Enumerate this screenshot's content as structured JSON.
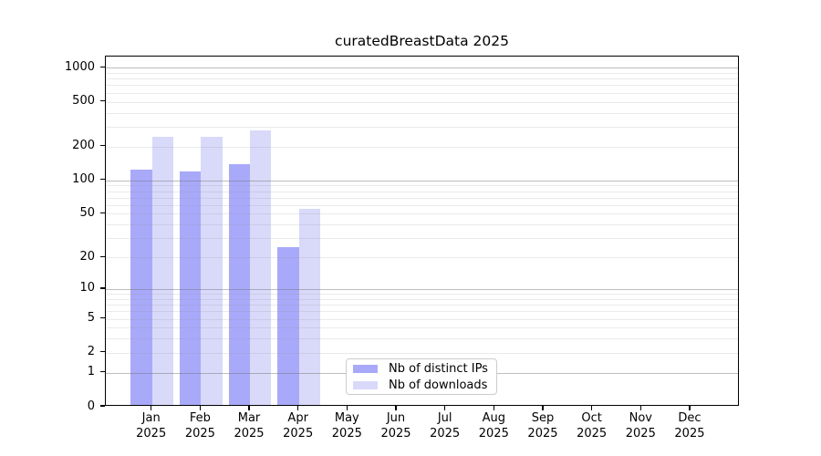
{
  "chart_data": {
    "type": "bar",
    "title": "curatedBreastData 2025",
    "categories": [
      "Jan",
      "Feb",
      "Mar",
      "Apr",
      "May",
      "Jun",
      "Jul",
      "Aug",
      "Sep",
      "Oct",
      "Nov",
      "Dec"
    ],
    "category_year": "2025",
    "series": [
      {
        "name": "Nb of distinct IPs",
        "color": "#a9a9fa",
        "values": [
          120,
          116,
          135,
          24,
          0,
          0,
          0,
          0,
          0,
          0,
          0,
          0
        ]
      },
      {
        "name": "Nb of downloads",
        "color": "#d9d9fa",
        "values": [
          235,
          235,
          269,
          53,
          0,
          0,
          0,
          0,
          0,
          0,
          0,
          0
        ]
      }
    ],
    "xlabel": "",
    "ylabel": "",
    "y_axis": {
      "scale": "log1p",
      "tick_values": [
        1000,
        500,
        200,
        100,
        50,
        20,
        10,
        5,
        2,
        1,
        0
      ],
      "major_grid_values": [
        1,
        10,
        100,
        1000
      ],
      "minor_grid_values": [
        2,
        3,
        4,
        5,
        6,
        7,
        8,
        9,
        20,
        30,
        40,
        50,
        60,
        70,
        80,
        90,
        200,
        300,
        400,
        500,
        600,
        700,
        800,
        900
      ],
      "ylim": [
        0,
        1260
      ]
    },
    "legend_position": "inside-bottom-center",
    "grid": "horizontal"
  }
}
